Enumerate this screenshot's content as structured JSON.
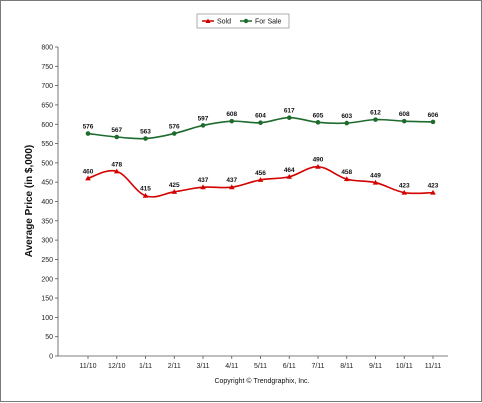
{
  "chart_data": {
    "type": "line",
    "categories": [
      "11/10",
      "12/10",
      "1/11",
      "2/11",
      "3/11",
      "4/11",
      "5/11",
      "6/11",
      "7/11",
      "8/11",
      "9/11",
      "10/11",
      "11/11"
    ],
    "series": [
      {
        "name": "Sold",
        "color": "#d40000",
        "marker": "triangle",
        "values": [
          460,
          478,
          415,
          425,
          437,
          437,
          456,
          464,
          490,
          458,
          449,
          423,
          423
        ]
      },
      {
        "name": "For Sale",
        "color": "#1e6b2e",
        "marker": "circle",
        "values": [
          576,
          567,
          563,
          576,
          597,
          608,
          604,
          617,
          605,
          603,
          612,
          608,
          606
        ]
      }
    ],
    "ylabel": "Average Price (in $,000)",
    "xlabel": "",
    "ylim": [
      0,
      800
    ],
    "yticks": [
      0,
      50,
      100,
      150,
      200,
      250,
      300,
      350,
      400,
      450,
      500,
      550,
      600,
      650,
      700,
      750,
      800
    ],
    "grid": false,
    "legend": "top-center"
  },
  "footer": {
    "copyright": "Copyright © Trendgraphix, Inc."
  }
}
